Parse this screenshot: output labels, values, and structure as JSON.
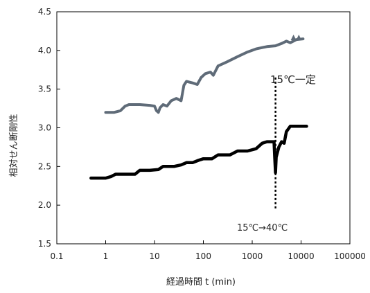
{
  "chart_data": {
    "type": "line",
    "title": "",
    "xlabel": "経過時間 t (min)",
    "ylabel": "相対せん断剛性",
    "x_scale": "log",
    "xlim": [
      0.1,
      100000
    ],
    "ylim": [
      1.5,
      4.5
    ],
    "x_ticks": [
      0.1,
      1,
      10,
      100,
      1000,
      10000,
      100000
    ],
    "x_tick_labels": [
      "0.1",
      "1",
      "10",
      "100",
      "1000",
      "10000",
      "100000"
    ],
    "y_ticks": [
      1.5,
      2.0,
      2.5,
      3.0,
      3.5,
      4.0,
      4.5
    ],
    "y_tick_labels": [
      "1.5",
      "2.0",
      "2.5",
      "3.0",
      "3.5",
      "4.0",
      "4.5"
    ],
    "grid": false,
    "legend": "none",
    "series": [
      {
        "color": "#5f6b78",
        "values": [
          {
            "x": 1,
            "y": 3.2
          },
          {
            "x": 1.5,
            "y": 3.2
          },
          {
            "x": 2,
            "y": 3.22
          },
          {
            "x": 2.5,
            "y": 3.28
          },
          {
            "x": 3,
            "y": 3.3
          },
          {
            "x": 5,
            "y": 3.3
          },
          {
            "x": 8,
            "y": 3.29
          },
          {
            "x": 10,
            "y": 3.28
          },
          {
            "x": 11,
            "y": 3.22
          },
          {
            "x": 12,
            "y": 3.2
          },
          {
            "x": 13,
            "y": 3.26
          },
          {
            "x": 15,
            "y": 3.3
          },
          {
            "x": 18,
            "y": 3.28
          },
          {
            "x": 22,
            "y": 3.35
          },
          {
            "x": 28,
            "y": 3.38
          },
          {
            "x": 35,
            "y": 3.35
          },
          {
            "x": 40,
            "y": 3.55
          },
          {
            "x": 45,
            "y": 3.6
          },
          {
            "x": 60,
            "y": 3.58
          },
          {
            "x": 75,
            "y": 3.56
          },
          {
            "x": 90,
            "y": 3.65
          },
          {
            "x": 110,
            "y": 3.7
          },
          {
            "x": 140,
            "y": 3.72
          },
          {
            "x": 160,
            "y": 3.68
          },
          {
            "x": 200,
            "y": 3.8
          },
          {
            "x": 300,
            "y": 3.85
          },
          {
            "x": 500,
            "y": 3.92
          },
          {
            "x": 800,
            "y": 3.98
          },
          {
            "x": 1200,
            "y": 4.02
          },
          {
            "x": 2000,
            "y": 4.05
          },
          {
            "x": 3000,
            "y": 4.06
          },
          {
            "x": 4000,
            "y": 4.09
          },
          {
            "x": 5000,
            "y": 4.12
          },
          {
            "x": 6000,
            "y": 4.1
          },
          {
            "x": 8000,
            "y": 4.14
          },
          {
            "x": 11000,
            "y": 4.15
          }
        ],
        "markers": [
          {
            "x": 7000,
            "y": 4.16
          },
          {
            "x": 9000,
            "y": 4.16
          }
        ]
      },
      {
        "color": "#000000",
        "values": [
          {
            "x": 0.5,
            "y": 2.35
          },
          {
            "x": 0.8,
            "y": 2.35
          },
          {
            "x": 1,
            "y": 2.35
          },
          {
            "x": 1.3,
            "y": 2.37
          },
          {
            "x": 1.6,
            "y": 2.4
          },
          {
            "x": 2.5,
            "y": 2.4
          },
          {
            "x": 4,
            "y": 2.4
          },
          {
            "x": 5,
            "y": 2.45
          },
          {
            "x": 8,
            "y": 2.45
          },
          {
            "x": 12,
            "y": 2.46
          },
          {
            "x": 15,
            "y": 2.5
          },
          {
            "x": 25,
            "y": 2.5
          },
          {
            "x": 35,
            "y": 2.52
          },
          {
            "x": 45,
            "y": 2.55
          },
          {
            "x": 60,
            "y": 2.55
          },
          {
            "x": 80,
            "y": 2.58
          },
          {
            "x": 100,
            "y": 2.6
          },
          {
            "x": 150,
            "y": 2.6
          },
          {
            "x": 200,
            "y": 2.65
          },
          {
            "x": 350,
            "y": 2.65
          },
          {
            "x": 500,
            "y": 2.7
          },
          {
            "x": 800,
            "y": 2.7
          },
          {
            "x": 1200,
            "y": 2.73
          },
          {
            "x": 1600,
            "y": 2.8
          },
          {
            "x": 2000,
            "y": 2.82
          },
          {
            "x": 2800,
            "y": 2.82
          },
          {
            "x": 2900,
            "y": 2.6
          },
          {
            "x": 3000,
            "y": 2.42
          },
          {
            "x": 3100,
            "y": 2.62
          },
          {
            "x": 3500,
            "y": 2.75
          },
          {
            "x": 4000,
            "y": 2.82
          },
          {
            "x": 4500,
            "y": 2.8
          },
          {
            "x": 5000,
            "y": 2.95
          },
          {
            "x": 6000,
            "y": 3.02
          },
          {
            "x": 8000,
            "y": 3.02
          },
          {
            "x": 13000,
            "y": 3.02
          }
        ]
      }
    ],
    "annotations": {
      "constant_label": "15℃一定",
      "change_label": "15℃→40℃",
      "event_x": 3000
    }
  }
}
